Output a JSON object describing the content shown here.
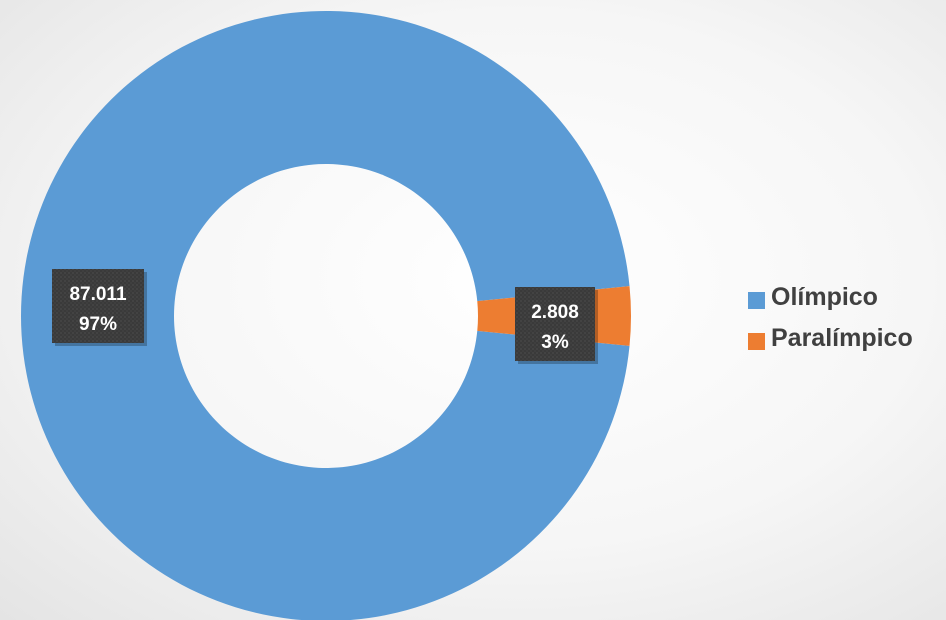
{
  "chart_data": {
    "type": "pie",
    "variant": "donut",
    "categories": [
      "Olímpico",
      "Paralímpico"
    ],
    "values": [
      87011,
      2808
    ],
    "value_labels": [
      "87.011",
      "2.808"
    ],
    "percent_labels": [
      "97%",
      "3%"
    ],
    "colors": [
      "#5b9bd5",
      "#ed7d31"
    ],
    "legend_position": "right",
    "title": ""
  },
  "legend": {
    "items": [
      {
        "label": "Olímpico",
        "color": "#5b9bd5"
      },
      {
        "label": "Paralímpico",
        "color": "#ed7d31"
      }
    ]
  }
}
